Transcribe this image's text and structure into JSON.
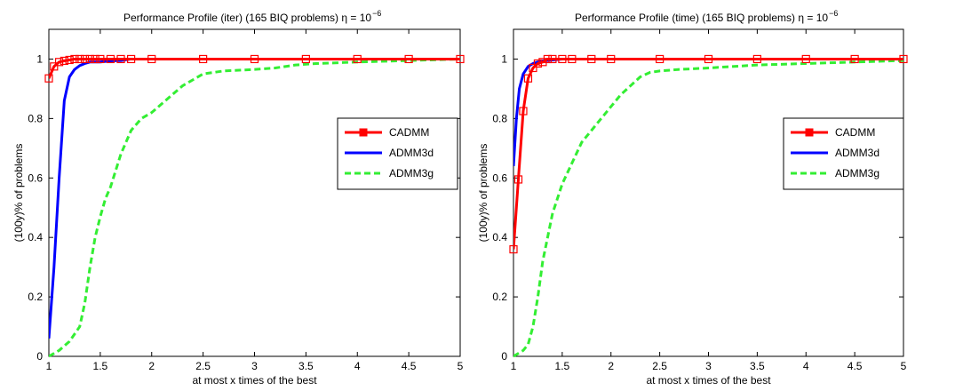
{
  "chart_data": [
    {
      "type": "line",
      "title": "Performance Profile (iter) (165 BIQ problems) η = 10",
      "title_exponent": "−6",
      "xlabel": "at most x times of the best",
      "ylabel": "(100y)% of problems",
      "xlim": [
        1,
        5
      ],
      "ylim": [
        0,
        1.1
      ],
      "xticks": [
        "1",
        "1.5",
        "2",
        "2.5",
        "3",
        "3.5",
        "4",
        "4.5",
        "5"
      ],
      "yticks": [
        "0",
        "0.2",
        "0.4",
        "0.6",
        "0.8",
        "1"
      ],
      "legend_position": "right",
      "grid": false,
      "series": [
        {
          "name": "CADMM",
          "color": "#ff0000",
          "style": "solid-square",
          "x": [
            1.0,
            1.05,
            1.1,
            1.15,
            1.2,
            1.25,
            1.3,
            1.35,
            1.4,
            1.45,
            1.5,
            1.6,
            1.7,
            1.8,
            2.0,
            2.5,
            3.0,
            3.5,
            4.0,
            4.5,
            5.0
          ],
          "y": [
            0.935,
            0.975,
            0.99,
            0.994,
            0.997,
            1.0,
            1.0,
            1.0,
            1.0,
            1.0,
            1.0,
            1.0,
            1.0,
            1.0,
            1.0,
            1.0,
            1.0,
            1.0,
            1.0,
            1.0,
            1.0
          ]
        },
        {
          "name": "ADMM3d",
          "color": "#0000ff",
          "style": "solid",
          "x": [
            1.0,
            1.05,
            1.1,
            1.15,
            1.2,
            1.25,
            1.3,
            1.35,
            1.4,
            1.5,
            1.6,
            1.7,
            1.8,
            2.0,
            2.5,
            3.0,
            3.5,
            3.6,
            4.0,
            5.0
          ],
          "y": [
            0.06,
            0.3,
            0.6,
            0.86,
            0.94,
            0.965,
            0.978,
            0.985,
            0.99,
            0.99,
            0.994,
            0.995,
            1.0,
            1.0,
            1.0,
            1.0,
            1.0,
            1.0,
            1.0,
            1.0
          ]
        },
        {
          "name": "ADMM3g",
          "color": "#33ee33",
          "style": "dashed",
          "x": [
            1.0,
            1.1,
            1.2,
            1.3,
            1.35,
            1.4,
            1.45,
            1.5,
            1.55,
            1.6,
            1.7,
            1.8,
            1.9,
            2.0,
            2.1,
            2.2,
            2.3,
            2.4,
            2.5,
            2.7,
            3.0,
            3.2,
            3.4,
            3.6,
            4.0,
            4.5,
            5.0
          ],
          "y": [
            0.0,
            0.02,
            0.05,
            0.1,
            0.18,
            0.3,
            0.4,
            0.47,
            0.53,
            0.57,
            0.68,
            0.76,
            0.8,
            0.82,
            0.85,
            0.88,
            0.91,
            0.93,
            0.95,
            0.96,
            0.965,
            0.97,
            0.98,
            0.985,
            0.99,
            0.995,
            1.0
          ]
        }
      ]
    },
    {
      "type": "line",
      "title": "Performance Profile (time) (165 BIQ problems) η = 10",
      "title_exponent": "−6",
      "xlabel": "at most x times of the best",
      "ylabel": "(100y)% of problems",
      "xlim": [
        1,
        5
      ],
      "ylim": [
        0,
        1.1
      ],
      "xticks": [
        "1",
        "1.5",
        "2",
        "2.5",
        "3",
        "3.5",
        "4",
        "4.5",
        "5"
      ],
      "yticks": [
        "0",
        "0.2",
        "0.4",
        "0.6",
        "0.8",
        "1"
      ],
      "legend_position": "right",
      "grid": false,
      "series": [
        {
          "name": "CADMM",
          "color": "#ff0000",
          "style": "solid-square",
          "x": [
            1.0,
            1.05,
            1.1,
            1.15,
            1.2,
            1.25,
            1.3,
            1.35,
            1.4,
            1.5,
            1.6,
            1.8,
            2.0,
            2.5,
            3.0,
            3.5,
            4.0,
            4.5,
            5.0
          ],
          "y": [
            0.36,
            0.595,
            0.825,
            0.935,
            0.97,
            0.985,
            0.99,
            1.0,
            1.0,
            1.0,
            1.0,
            1.0,
            1.0,
            1.0,
            1.0,
            1.0,
            1.0,
            1.0,
            1.0
          ]
        },
        {
          "name": "ADMM3d",
          "color": "#0000ff",
          "style": "solid",
          "x": [
            1.0,
            1.03,
            1.06,
            1.1,
            1.15,
            1.2,
            1.25,
            1.3,
            1.4,
            1.5,
            1.6,
            2.0,
            3.0,
            4.0,
            5.0
          ],
          "y": [
            0.64,
            0.8,
            0.9,
            0.95,
            0.975,
            0.985,
            0.99,
            0.994,
            0.997,
            1.0,
            1.0,
            1.0,
            1.0,
            1.0,
            1.0
          ]
        },
        {
          "name": "ADMM3g",
          "color": "#33ee33",
          "style": "dashed",
          "x": [
            1.0,
            1.1,
            1.15,
            1.2,
            1.25,
            1.3,
            1.35,
            1.4,
            1.45,
            1.5,
            1.6,
            1.7,
            1.8,
            1.9,
            2.0,
            2.1,
            2.2,
            2.3,
            2.4,
            2.5,
            2.7,
            3.0,
            3.5,
            4.0,
            4.5,
            5.0
          ],
          "y": [
            0.0,
            0.02,
            0.04,
            0.1,
            0.2,
            0.32,
            0.4,
            0.48,
            0.53,
            0.58,
            0.65,
            0.72,
            0.76,
            0.8,
            0.84,
            0.88,
            0.91,
            0.94,
            0.955,
            0.96,
            0.965,
            0.97,
            0.98,
            0.985,
            0.99,
            0.995
          ]
        }
      ]
    }
  ]
}
